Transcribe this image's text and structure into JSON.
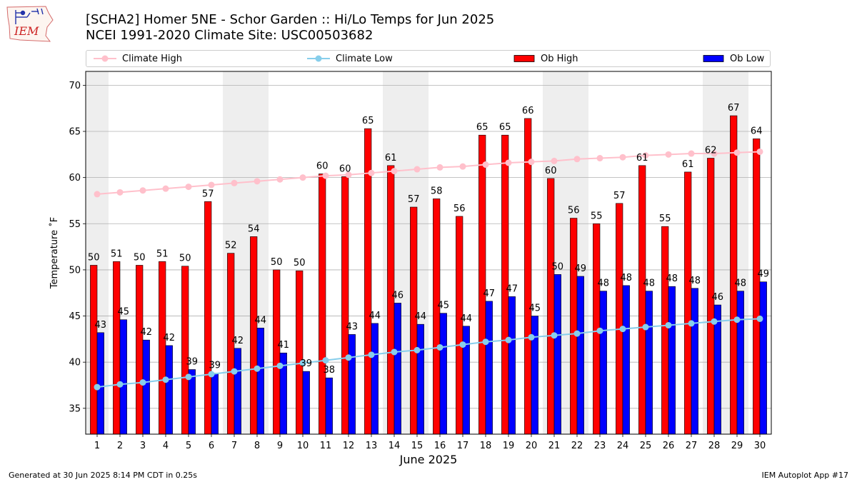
{
  "logo_text": "IEM",
  "header": {
    "title": "[SCHA2] Homer 5NE - Schor Garden :: Hi/Lo Temps for Jun 2025",
    "subtitle": "NCEI 1991-2020 Climate Site: USC00503682"
  },
  "footer": {
    "left": "Generated at 30 Jun 2025 8:14 PM CDT in 0.25s",
    "right": "IEM Autoplot App #17"
  },
  "chart_data": {
    "type": "bar",
    "title": "[SCHA2] Homer 5NE - Schor Garden :: Hi/Lo Temps for Jun 2025",
    "subtitle": "NCEI 1991-2020 Climate Site: USC00503682",
    "xlabel": "June 2025",
    "ylabel": "Temperature ˚F",
    "ylim": [
      32.2,
      71.5
    ],
    "yticks": [
      35,
      40,
      45,
      50,
      55,
      60,
      65,
      70
    ],
    "grid": true,
    "legend_position": "top",
    "weekend_shading": [
      [
        1,
        1
      ],
      [
        7,
        8
      ],
      [
        14,
        15
      ],
      [
        21,
        22
      ],
      [
        28,
        29
      ]
    ],
    "categories": [
      "1",
      "2",
      "3",
      "4",
      "5",
      "6",
      "7",
      "8",
      "9",
      "10",
      "11",
      "12",
      "13",
      "14",
      "15",
      "16",
      "17",
      "18",
      "19",
      "20",
      "21",
      "22",
      "23",
      "24",
      "25",
      "26",
      "27",
      "28",
      "29",
      "30"
    ],
    "series": [
      {
        "name": "Ob High",
        "kind": "bar",
        "color": "#ff0000",
        "values": [
          50.5,
          50.9,
          50.5,
          50.9,
          50.4,
          57.4,
          51.8,
          53.6,
          50.0,
          49.9,
          60.4,
          60.1,
          65.3,
          61.3,
          56.8,
          57.7,
          55.8,
          64.6,
          64.6,
          66.4,
          59.9,
          55.6,
          55.0,
          57.2,
          61.3,
          54.7,
          60.6,
          62.1,
          66.7,
          64.2
        ],
        "labels": [
          "50",
          "51",
          "50",
          "51",
          "50",
          "57",
          "52",
          "54",
          "50",
          "50",
          "60",
          "60",
          "65",
          "61",
          "57",
          "58",
          "56",
          "65",
          "65",
          "66",
          "60",
          "56",
          "55",
          "57",
          "61",
          "55",
          "61",
          "62",
          "67",
          "64"
        ]
      },
      {
        "name": "Ob Low",
        "kind": "bar",
        "color": "#0000ff",
        "values": [
          43.2,
          44.6,
          42.4,
          41.8,
          39.2,
          38.8,
          41.5,
          43.7,
          41.0,
          39.0,
          38.3,
          43.0,
          44.2,
          46.4,
          44.1,
          45.3,
          43.9,
          46.6,
          47.1,
          45.0,
          49.5,
          49.3,
          47.7,
          48.3,
          47.7,
          48.2,
          48.0,
          46.2,
          47.7,
          48.7
        ],
        "labels": [
          "43",
          "45",
          "42",
          "42",
          "39",
          "39",
          "42",
          "44",
          "41",
          "39",
          "38",
          "43",
          "44",
          "46",
          "44",
          "45",
          "44",
          "47",
          "47",
          "45",
          "50",
          "49",
          "48",
          "48",
          "48",
          "48",
          "48",
          "46",
          "48",
          "49"
        ]
      },
      {
        "name": "Climate High",
        "kind": "line",
        "color": "#ffc0cb",
        "values": [
          58.2,
          58.4,
          58.6,
          58.8,
          59.0,
          59.2,
          59.4,
          59.6,
          59.8,
          60.0,
          60.2,
          60.3,
          60.5,
          60.7,
          60.9,
          61.1,
          61.2,
          61.4,
          61.6,
          61.7,
          61.8,
          62.0,
          62.1,
          62.2,
          62.4,
          62.5,
          62.6,
          62.6,
          62.7,
          62.8
        ]
      },
      {
        "name": "Climate Low",
        "kind": "line",
        "color": "#87ceeb",
        "values": [
          37.3,
          37.6,
          37.8,
          38.1,
          38.4,
          38.7,
          39.0,
          39.3,
          39.6,
          39.9,
          40.2,
          40.5,
          40.8,
          41.1,
          41.3,
          41.6,
          41.9,
          42.2,
          42.4,
          42.7,
          42.9,
          43.1,
          43.4,
          43.6,
          43.8,
          44.0,
          44.2,
          44.4,
          44.6,
          44.7
        ]
      }
    ]
  }
}
